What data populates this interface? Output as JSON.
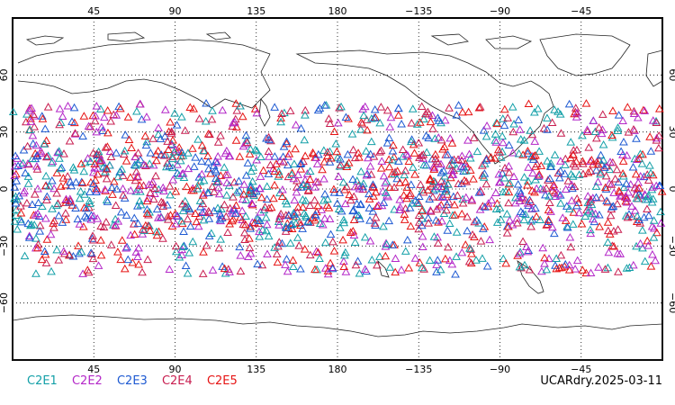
{
  "map": {
    "projection": "cylindrical equidistant",
    "lon_range": [
      0,
      360
    ],
    "lat_range": [
      -90,
      90
    ],
    "lon_tick_labels": [
      "45",
      "90",
      "135",
      "180",
      "−135",
      "−90",
      "−45"
    ],
    "lat_tick_labels": [
      "60",
      "30",
      "0",
      "−30",
      "−60"
    ],
    "grid": "dotted",
    "marker": "open triangle",
    "observation_lat_band": [
      -45,
      45
    ],
    "land_outline_color": "#000000"
  },
  "legend": [
    {
      "label": "C2E1",
      "color": "#14a0a8"
    },
    {
      "label": "C2E2",
      "color": "#b428c8"
    },
    {
      "label": "C2E3",
      "color": "#1e5ad2"
    },
    {
      "label": "C2E4",
      "color": "#c81e50"
    },
    {
      "label": "C2E5",
      "color": "#e61414"
    }
  ],
  "footer": {
    "product_stamp": "UCARdry.2025-03-11"
  }
}
